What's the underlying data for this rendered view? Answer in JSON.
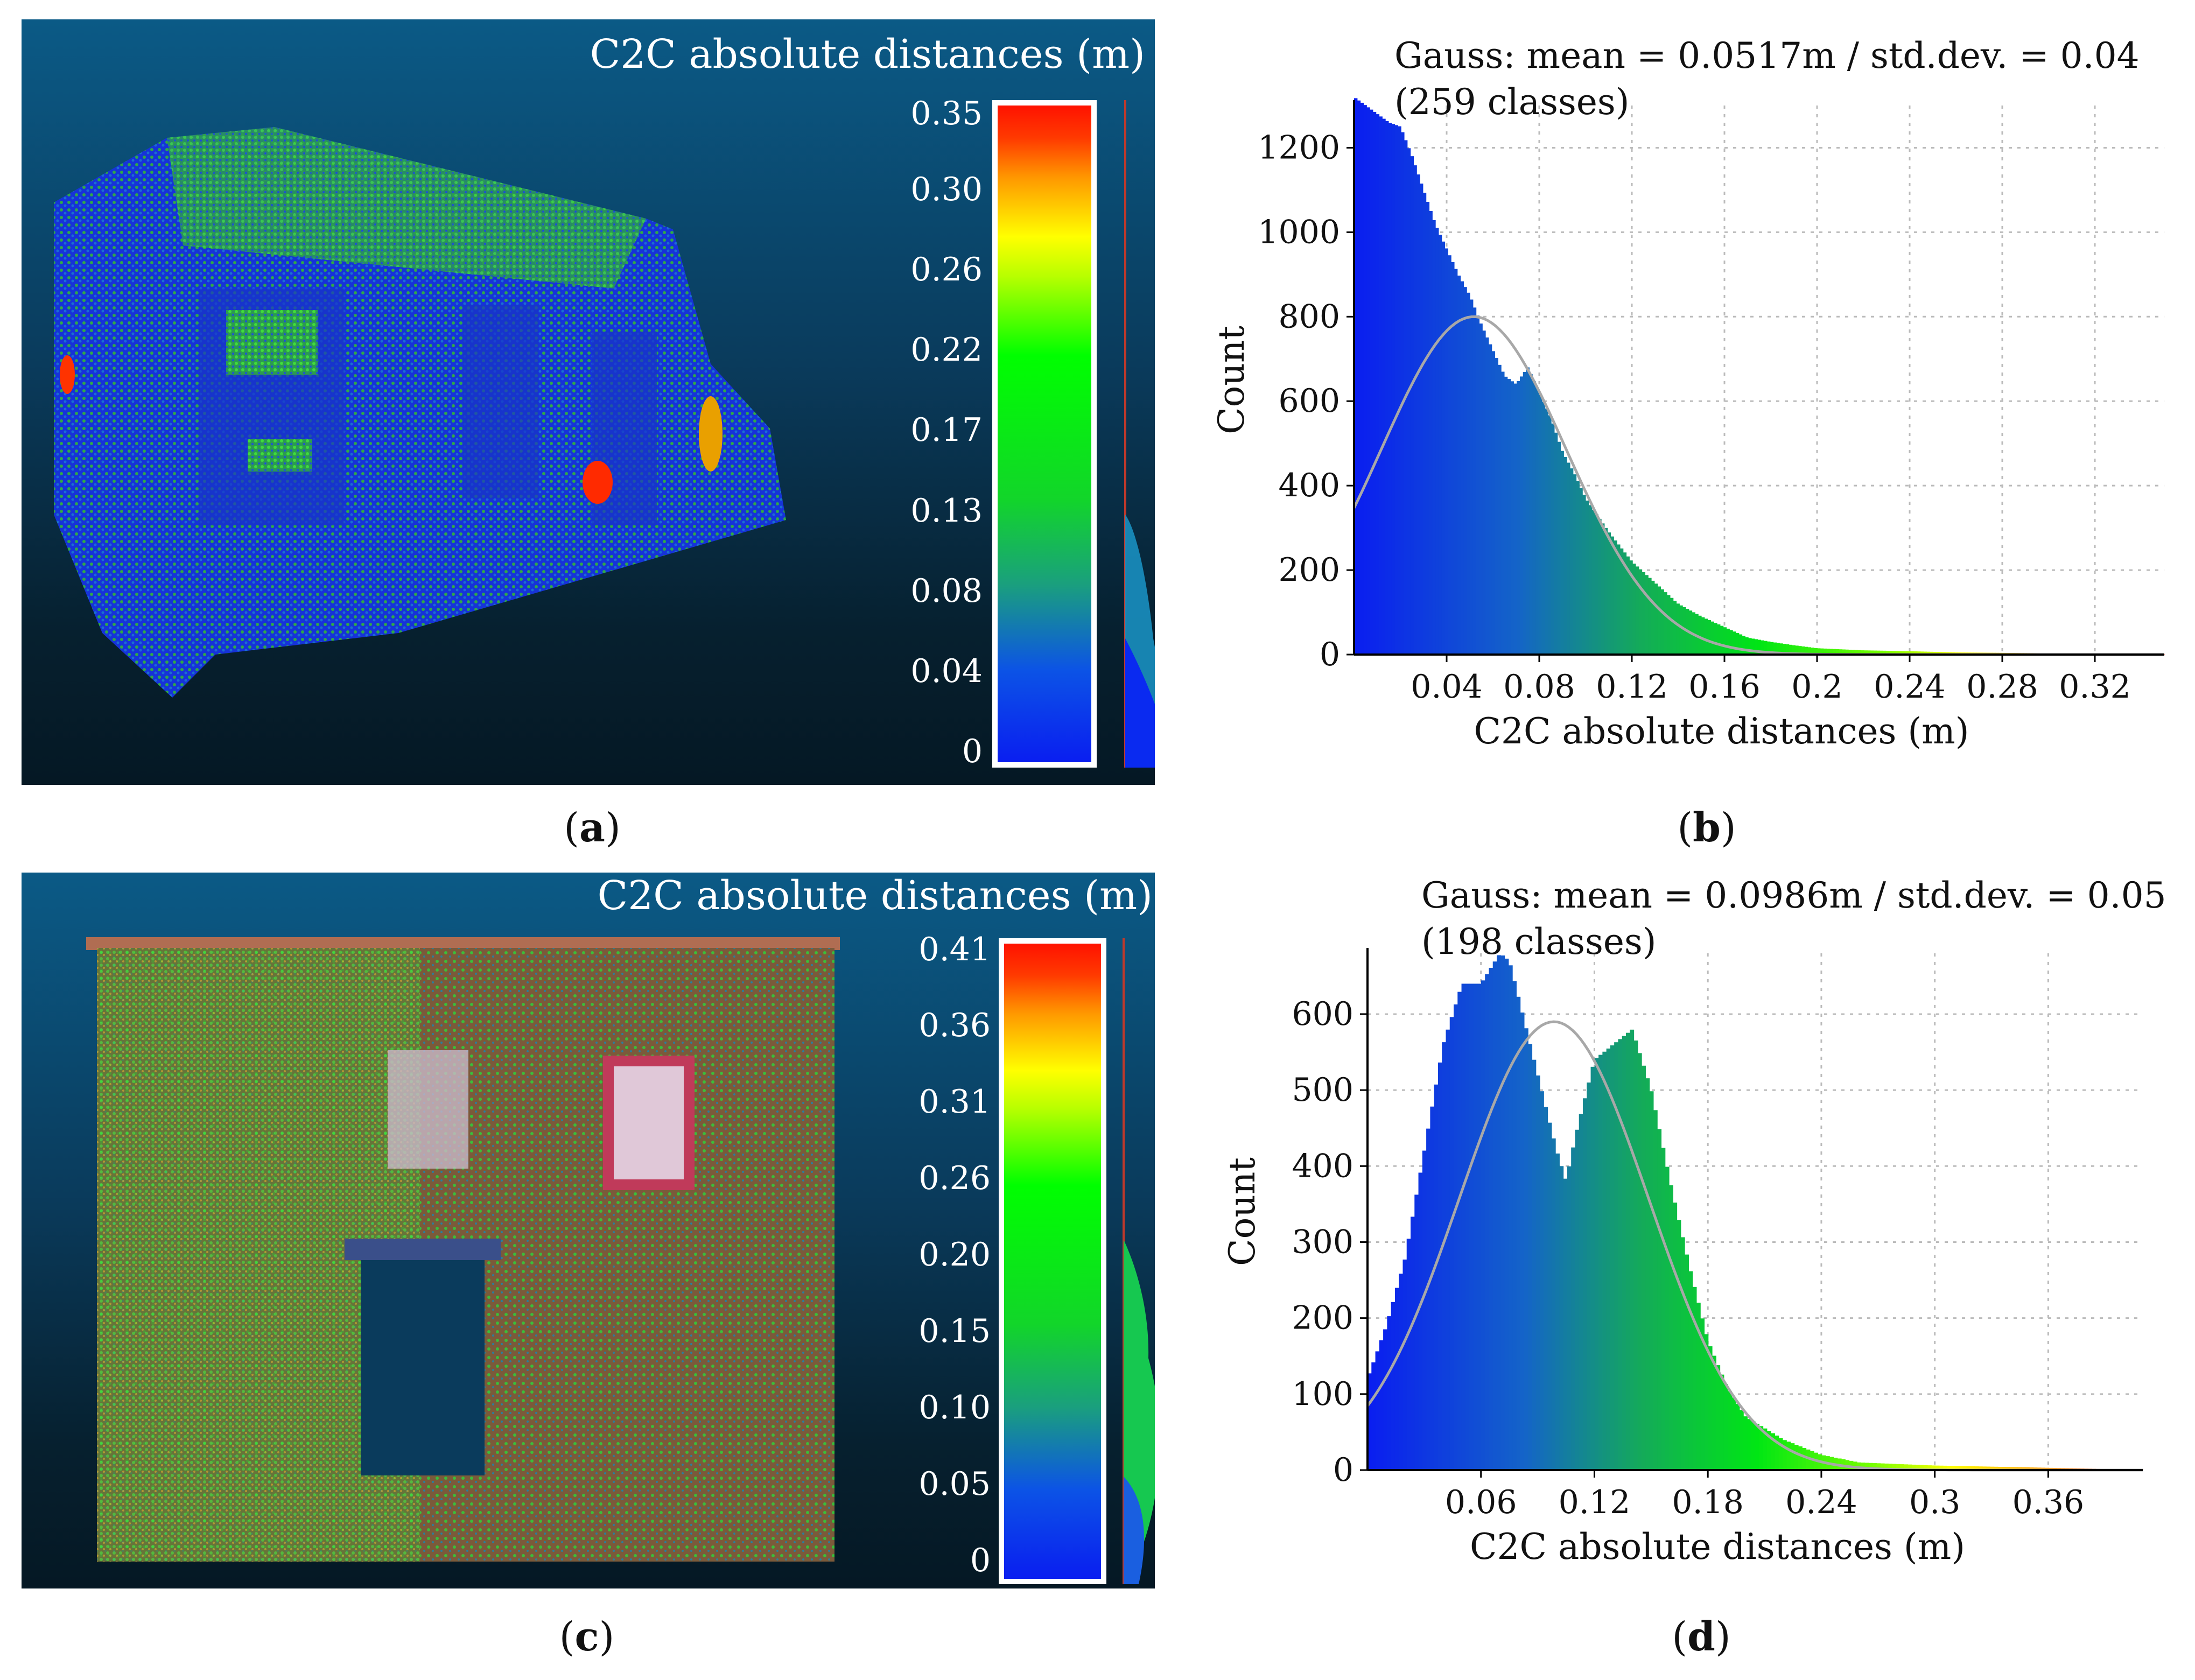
{
  "captions": [
    "a",
    "b",
    "c",
    "d"
  ],
  "panel_a": {
    "title": "C2C absolute distances (m)",
    "scale_labels": [
      "0.35",
      "0.30",
      "0.26",
      "0.22",
      "0.17",
      "0.13",
      "0.08",
      "0.04",
      "0"
    ]
  },
  "panel_c": {
    "title": "C2C absolute distances (m)",
    "scale_labels": [
      "0.41",
      "0.36",
      "0.31",
      "0.26",
      "0.20",
      "0.15",
      "0.10",
      "0.05",
      "0"
    ]
  },
  "chart_data": [
    {
      "type": "bar",
      "id": "b",
      "title": "Gauss: mean = 0.0517m / std.dev. = 0.04",
      "subtitle": "(259 classes)",
      "xlabel": "C2C absolute distances (m)",
      "ylabel": "Count",
      "xlim": [
        0,
        0.35
      ],
      "ylim": [
        0,
        1300
      ],
      "xticks": [
        "0.04",
        "0.08",
        "0.12",
        "0.16",
        "0.2",
        "0.24",
        "0.28",
        "0.32"
      ],
      "yticks": [
        "0",
        "200",
        "400",
        "600",
        "800",
        "1000",
        "1200"
      ],
      "gauss": {
        "mean": 0.0517,
        "std": 0.04,
        "peak": 800
      },
      "x": [
        0.0,
        0.005,
        0.01,
        0.015,
        0.02,
        0.025,
        0.03,
        0.035,
        0.04,
        0.045,
        0.05,
        0.055,
        0.06,
        0.065,
        0.07,
        0.075,
        0.08,
        0.085,
        0.09,
        0.095,
        0.1,
        0.11,
        0.12,
        0.13,
        0.14,
        0.15,
        0.16,
        0.17,
        0.18,
        0.19,
        0.2,
        0.22,
        0.24,
        0.26,
        0.28,
        0.3,
        0.32,
        0.34
      ],
      "values": [
        1320,
        1300,
        1280,
        1260,
        1250,
        1180,
        1100,
        1020,
        960,
        900,
        850,
        780,
        720,
        660,
        640,
        680,
        620,
        560,
        480,
        430,
        370,
        290,
        220,
        170,
        120,
        90,
        65,
        40,
        30,
        22,
        15,
        10,
        8,
        5,
        4,
        3,
        2,
        1
      ]
    },
    {
      "type": "bar",
      "id": "d",
      "title": "Gauss: mean = 0.0986m / std.dev. = 0.05",
      "subtitle": "(198 classes)",
      "xlabel": "C2C absolute distances (m)",
      "ylabel": "Count",
      "xlim": [
        0,
        0.41
      ],
      "ylim": [
        0,
        680
      ],
      "xticks": [
        "0.06",
        "0.12",
        "0.18",
        "0.24",
        "0.3",
        "0.36"
      ],
      "yticks": [
        "0",
        "100",
        "200",
        "300",
        "400",
        "500",
        "600"
      ],
      "gauss": {
        "mean": 0.0986,
        "std": 0.05,
        "peak": 590
      },
      "x": [
        0.0,
        0.01,
        0.02,
        0.03,
        0.04,
        0.05,
        0.06,
        0.07,
        0.075,
        0.08,
        0.09,
        0.1,
        0.105,
        0.11,
        0.12,
        0.13,
        0.14,
        0.15,
        0.16,
        0.17,
        0.18,
        0.19,
        0.2,
        0.22,
        0.24,
        0.26,
        0.3,
        0.34,
        0.38,
        0.41
      ],
      "values": [
        120,
        190,
        280,
        420,
        560,
        640,
        640,
        680,
        670,
        620,
        520,
        420,
        380,
        440,
        540,
        560,
        580,
        500,
        380,
        270,
        170,
        110,
        70,
        40,
        20,
        10,
        6,
        4,
        2,
        1
      ]
    }
  ]
}
